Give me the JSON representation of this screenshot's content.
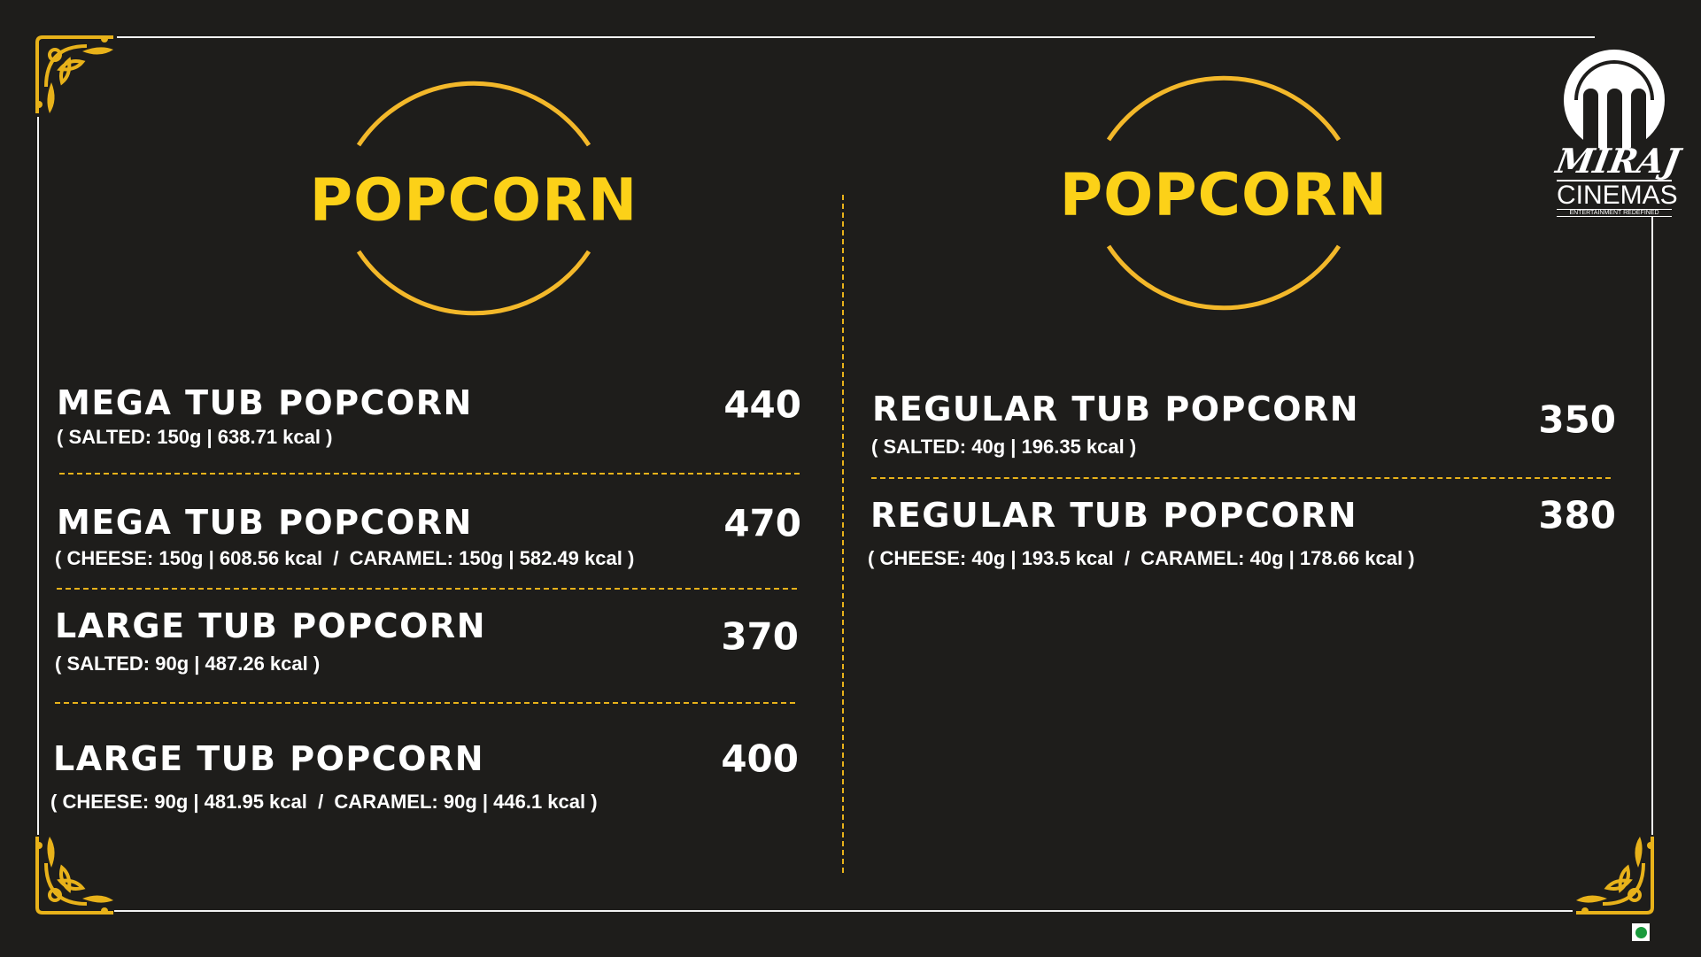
{
  "brand": {
    "name": "MIRAJ",
    "sub": "CINEMAS",
    "tagline": "ENTERTAINMENT REDEFINED"
  },
  "colors": {
    "background": "#1e1d1b",
    "accent": "#fcd118",
    "ring": "#f3b82a",
    "text": "#ffffff",
    "veg_mark": "#1a9a3c"
  },
  "left": {
    "heading": "POPCORN",
    "items": [
      {
        "name": "MEGA TUB POPCORN",
        "details": "( SALTED: 150g | 638.71 kcal )",
        "price": "440"
      },
      {
        "name": "MEGA TUB POPCORN",
        "details": "( CHEESE: 150g | 608.56 kcal  /  CARAMEL: 150g | 582.49 kcal )",
        "price": "470"
      },
      {
        "name": "LARGE TUB POPCORN",
        "details": "( SALTED: 90g | 487.26 kcal )",
        "price": "370"
      },
      {
        "name": "LARGE TUB POPCORN",
        "details": "( CHEESE: 90g | 481.95 kcal  /  CARAMEL: 90g | 446.1 kcal )",
        "price": "400"
      }
    ]
  },
  "right": {
    "heading": "POPCORN",
    "items": [
      {
        "name": "REGULAR TUB POPCORN",
        "details": "( SALTED: 40g | 196.35 kcal )",
        "price": "350"
      },
      {
        "name": "REGULAR TUB POPCORN",
        "details": "( CHEESE: 40g | 193.5 kcal  /  CARAMEL: 40g | 178.66 kcal )",
        "price": "380"
      }
    ]
  },
  "icons": {
    "corner": "ornament-flourish",
    "veg": "veg-symbol"
  }
}
